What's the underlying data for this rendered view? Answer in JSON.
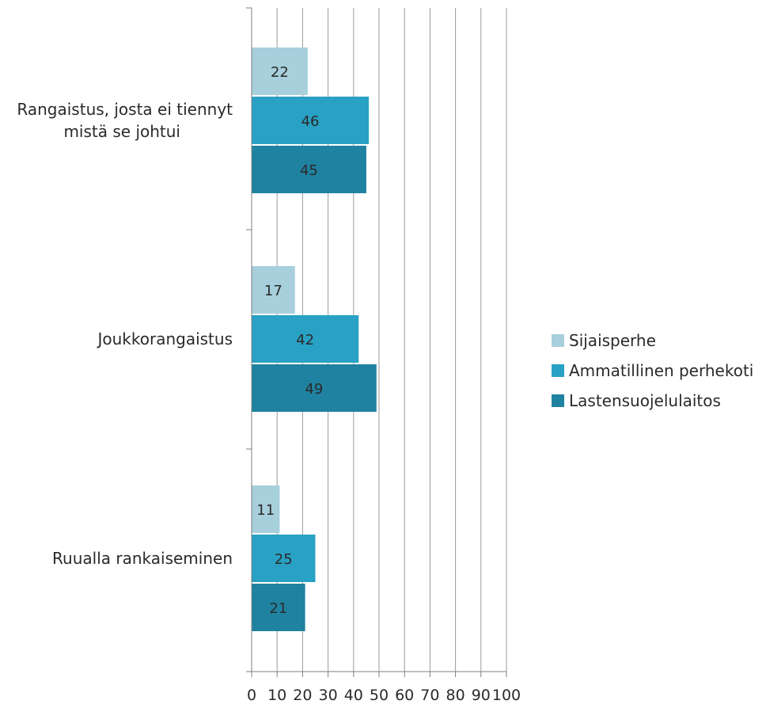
{
  "chart_data": {
    "type": "bar",
    "orientation": "horizontal",
    "categories": [
      "Rangaistus, josta ei tiennyt mistä se johtui",
      "Joukkorangaistus",
      "Ruualla rankaiseminen"
    ],
    "category_lines": [
      [
        "Rangaistus, josta ei tiennyt",
        "mistä se johtui"
      ],
      [
        "Joukkorangaistus"
      ],
      [
        "Ruualla rankaiseminen"
      ]
    ],
    "series": [
      {
        "name": "Sijaisperhe",
        "color": "#a7cfdc",
        "values": [
          22,
          17,
          11
        ]
      },
      {
        "name": "Ammatillinen perhekoti",
        "color": "#29a1c4",
        "values": [
          46,
          42,
          25
        ]
      },
      {
        "name": "Lastensuojelulaitos",
        "color": "#1f82a0",
        "values": [
          45,
          49,
          21
        ]
      }
    ],
    "x_ticks": [
      0,
      10,
      20,
      30,
      40,
      50,
      60,
      70,
      80,
      90,
      100
    ],
    "xlim": [
      0,
      100
    ],
    "grid": true,
    "legend_position": "right",
    "title": "",
    "xlabel": "",
    "ylabel": ""
  }
}
